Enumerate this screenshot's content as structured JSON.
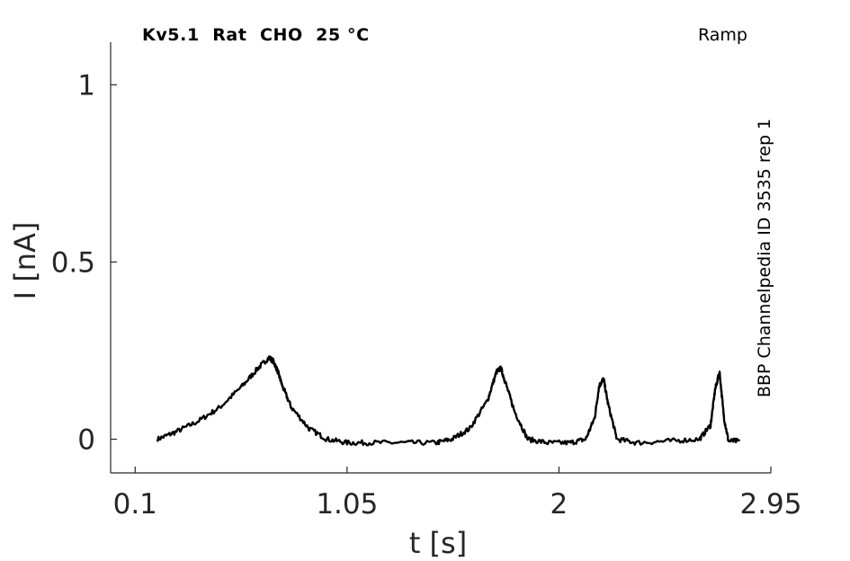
{
  "header": {
    "title": "Kv5.1  Rat  CHO  25 °C",
    "protocol": "Ramp",
    "side_label": "BBP Channelpedia ID 3535 rep 1"
  },
  "colors": {
    "trace": "#000000",
    "axis": "#262626"
  },
  "chart_data": {
    "type": "line",
    "xlabel": "t [s]",
    "ylabel": "I [nA]",
    "xlim": [
      -0.01,
      2.95
    ],
    "ylim": [
      -0.095,
      1.12
    ],
    "xticks": [
      0.1,
      1.05,
      2,
      2.95
    ],
    "xtick_labels": [
      "0.1",
      "1.05",
      "2",
      "2.95"
    ],
    "yticks": [
      0,
      0.5,
      1
    ],
    "ytick_labels": [
      "0",
      "0.5",
      "1"
    ],
    "grid": false,
    "series": [
      {
        "x": [
          0.2,
          0.28,
          0.38,
          0.48,
          0.58,
          0.65,
          0.7,
          0.72,
          0.74,
          0.76,
          0.8,
          0.88,
          0.96,
          1.05,
          1.15,
          1.3,
          1.45,
          1.52,
          1.6,
          1.68,
          1.72,
          1.74,
          1.76,
          1.8,
          1.86,
          1.95,
          2.05,
          2.12,
          2.16,
          2.18,
          2.2,
          2.22,
          2.26,
          2.35,
          2.5,
          2.63,
          2.68,
          2.7,
          2.72,
          2.74,
          2.76,
          2.81
        ],
        "y": [
          0.0,
          0.02,
          0.05,
          0.09,
          0.15,
          0.2,
          0.23,
          0.22,
          0.19,
          0.15,
          0.09,
          0.03,
          0.0,
          -0.01,
          -0.01,
          -0.01,
          -0.01,
          0.0,
          0.03,
          0.11,
          0.19,
          0.2,
          0.16,
          0.08,
          0.0,
          -0.01,
          -0.01,
          0.0,
          0.06,
          0.15,
          0.17,
          0.1,
          0.0,
          -0.01,
          -0.005,
          0.0,
          0.04,
          0.14,
          0.19,
          0.06,
          -0.005,
          -0.005
        ]
      }
    ]
  }
}
